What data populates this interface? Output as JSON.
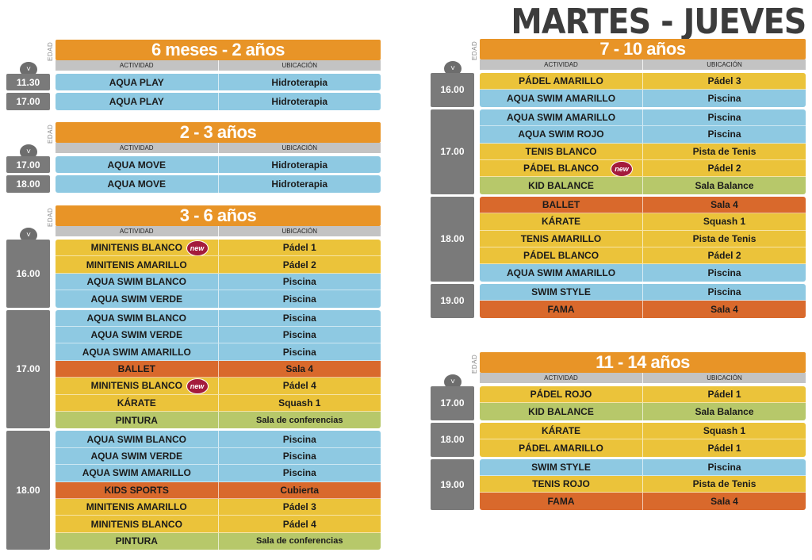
{
  "page_title": "MARTES - JUEVES",
  "edad_label": "EDAD",
  "col_activity": "ACTIVIDAD",
  "col_location": "UBICACIÓN",
  "clock_symbol": "˅",
  "new_badge": "new",
  "colors": {
    "orange": "#e89427",
    "blue": "#8ec9e2",
    "yellow": "#ebc33a",
    "rust": "#d9692c",
    "green": "#b7c86a",
    "time_gray": "#7a7a7a",
    "header_gray": "#c3c3c3"
  },
  "sections": [
    {
      "age": "6 meses - 2 años",
      "slots": [
        {
          "time": "11.30",
          "rows": [
            {
              "activity": "AQUA PLAY",
              "location": "Hidroterapia",
              "color": "blue"
            }
          ]
        },
        {
          "time": "17.00",
          "rows": [
            {
              "activity": "AQUA PLAY",
              "location": "Hidroterapia",
              "color": "blue"
            }
          ]
        }
      ]
    },
    {
      "age": "2 - 3 años",
      "slots": [
        {
          "time": "17.00",
          "rows": [
            {
              "activity": "AQUA MOVE",
              "location": "Hidroterapia",
              "color": "blue"
            }
          ]
        },
        {
          "time": "18.00",
          "rows": [
            {
              "activity": "AQUA MOVE",
              "location": "Hidroterapia",
              "color": "blue"
            }
          ]
        }
      ]
    },
    {
      "age": "3 - 6 años",
      "slots": [
        {
          "time": "16.00",
          "rows": [
            {
              "activity": "MINITENIS BLANCO",
              "location": "Pádel 1",
              "color": "yellow",
              "new": true
            },
            {
              "activity": "MINITENIS AMARILLO",
              "location": "Pádel 2",
              "color": "yellow"
            },
            {
              "activity": "AQUA SWIM BLANCO",
              "location": "Piscina",
              "color": "blue"
            },
            {
              "activity": "AQUA SWIM VERDE",
              "location": "Piscina",
              "color": "blue"
            }
          ]
        },
        {
          "time": "17.00",
          "rows": [
            {
              "activity": "AQUA SWIM BLANCO",
              "location": "Piscina",
              "color": "blue"
            },
            {
              "activity": "AQUA SWIM VERDE",
              "location": "Piscina",
              "color": "blue"
            },
            {
              "activity": "AQUA SWIM AMARILLO",
              "location": "Piscina",
              "color": "blue"
            },
            {
              "activity": "BALLET",
              "location": "Sala 4",
              "color": "rust"
            },
            {
              "activity": "MINITENIS BLANCO",
              "location": "Pádel 4",
              "color": "yellow",
              "new": true
            },
            {
              "activity": "KÁRATE",
              "location": "Squash 1",
              "color": "yellow"
            },
            {
              "activity": "PINTURA",
              "location": "Sala de conferencias",
              "color": "green"
            }
          ]
        },
        {
          "time": "18.00",
          "rows": [
            {
              "activity": "AQUA SWIM BLANCO",
              "location": "Piscina",
              "color": "blue"
            },
            {
              "activity": "AQUA SWIM VERDE",
              "location": "Piscina",
              "color": "blue"
            },
            {
              "activity": "AQUA SWIM AMARILLO",
              "location": "Piscina",
              "color": "blue"
            },
            {
              "activity": "KIDS SPORTS",
              "location": "Cubierta",
              "color": "rust"
            },
            {
              "activity": "MINITENIS AMARILLO",
              "location": "Pádel 3",
              "color": "yellow"
            },
            {
              "activity": "MINITENIS BLANCO",
              "location": "Pádel 4",
              "color": "yellow"
            },
            {
              "activity": "PINTURA",
              "location": "Sala de conferencias",
              "color": "green"
            }
          ]
        }
      ]
    },
    {
      "age": "7 - 10 años",
      "slots": [
        {
          "time": "16.00",
          "rows": [
            {
              "activity": "PÁDEL AMARILLO",
              "location": "Pádel 3",
              "color": "yellow"
            },
            {
              "activity": "AQUA SWIM AMARILLO",
              "location": "Piscina",
              "color": "blue"
            }
          ]
        },
        {
          "time": "17.00",
          "rows": [
            {
              "activity": "AQUA SWIM AMARILLO",
              "location": "Piscina",
              "color": "blue"
            },
            {
              "activity": "AQUA SWIM ROJO",
              "location": "Piscina",
              "color": "blue"
            },
            {
              "activity": "TENIS BLANCO",
              "location": "Pista de Tenis",
              "color": "yellow"
            },
            {
              "activity": "PÁDEL BLANCO",
              "location": "Pádel 2",
              "color": "yellow",
              "new": true
            },
            {
              "activity": "KID BALANCE",
              "location": "Sala Balance",
              "color": "green"
            }
          ]
        },
        {
          "time": "18.00",
          "rows": [
            {
              "activity": "BALLET",
              "location": "Sala 4",
              "color": "rust"
            },
            {
              "activity": "KÁRATE",
              "location": "Squash 1",
              "color": "yellow"
            },
            {
              "activity": "TENIS AMARILLO",
              "location": "Pista de Tenis",
              "color": "yellow"
            },
            {
              "activity": "PÁDEL BLANCO",
              "location": "Pádel 2",
              "color": "yellow"
            },
            {
              "activity": "AQUA SWIM AMARILLO",
              "location": "Piscina",
              "color": "blue"
            }
          ]
        },
        {
          "time": "19.00",
          "rows": [
            {
              "activity": "SWIM STYLE",
              "location": "Piscina",
              "color": "blue"
            },
            {
              "activity": "FAMA",
              "location": "Sala 4",
              "color": "rust"
            }
          ]
        }
      ]
    },
    {
      "age": "11 - 14 años",
      "slots": [
        {
          "time": "17.00",
          "rows": [
            {
              "activity": "PÁDEL ROJO",
              "location": "Pádel 1",
              "color": "yellow"
            },
            {
              "activity": "KID BALANCE",
              "location": "Sala Balance",
              "color": "green"
            }
          ]
        },
        {
          "time": "18.00",
          "rows": [
            {
              "activity": "KÁRATE",
              "location": "Squash 1",
              "color": "yellow"
            },
            {
              "activity": "PÁDEL AMARILLO",
              "location": "Pádel 1",
              "color": "yellow"
            }
          ]
        },
        {
          "time": "19.00",
          "rows": [
            {
              "activity": "SWIM STYLE",
              "location": "Piscina",
              "color": "blue"
            },
            {
              "activity": "TENIS ROJO",
              "location": "Pista de Tenis",
              "color": "yellow"
            },
            {
              "activity": "FAMA",
              "location": "Sala 4",
              "color": "rust"
            }
          ]
        }
      ]
    }
  ]
}
